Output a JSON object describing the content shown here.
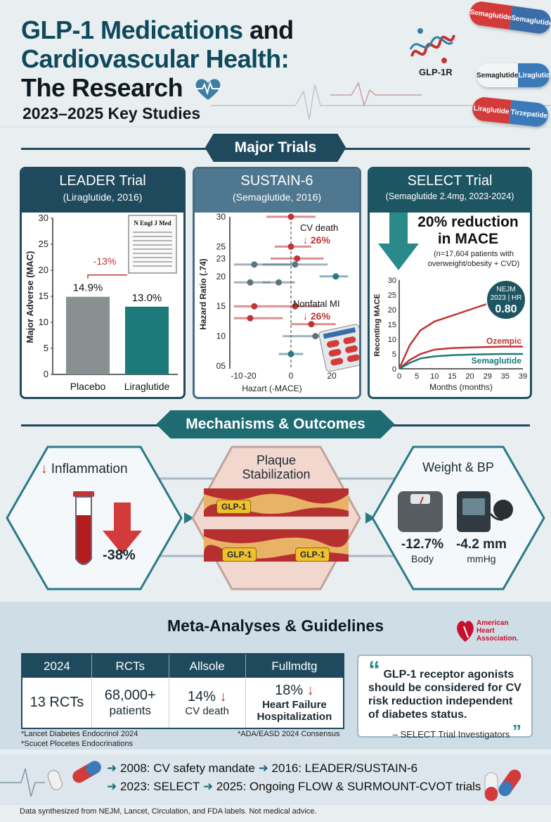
{
  "header": {
    "title_part1": "GLP-1 Medications",
    "title_part2": " and",
    "title_line2": "Cardiovascular Health:",
    "title_line3": "The Research",
    "subtitle": "2023–2025 Key Studies",
    "receptor_label": "GLP-1R",
    "pills": [
      {
        "left": "Semaglutide",
        "right": "Semaglutide"
      },
      {
        "left": "Semaglutide",
        "right": "Liraglutide"
      },
      {
        "left": "Liraglutide",
        "right": "Tirzepatide"
      }
    ]
  },
  "sections": {
    "major_trials": "Major Trials",
    "mechanisms": "Mechanisms & Outcomes",
    "meta": "Meta-Analyses & Guidelines"
  },
  "leader": {
    "title": "LEADER Trial",
    "subtitle": "(Liraglutide, 2016)",
    "ylabel": "Major Adverse (MAC)",
    "reduction": "-13%",
    "journal": "N Engl J Med",
    "chart_data": {
      "type": "bar",
      "categories": [
        "Placebo",
        "Liraglutide"
      ],
      "values": [
        14.9,
        13.0
      ],
      "value_labels": [
        "14.9%",
        "13.0%"
      ],
      "ylim": [
        0,
        30
      ],
      "yticks": [
        "0",
        "5",
        "10",
        "15",
        "20",
        "25",
        "30"
      ],
      "colors": [
        "#8a8f92",
        "#1d7a7a"
      ],
      "ylabel": "Major Adverse (MAC)"
    }
  },
  "sustain": {
    "title": "SUSTAIN-6",
    "subtitle": "(Semaglutide, 2016)",
    "ylabel": "Hazard Ratio (.74)",
    "xlabel": "Hazart (-MACE)",
    "cv_label": "CV death",
    "cv_value": "26%",
    "mi_label": "Nonfatal MI",
    "mi_value": "26%",
    "chart_data": {
      "type": "scatter",
      "yticks": [
        "05",
        "10",
        "15",
        "20",
        "23",
        "25",
        "30"
      ],
      "xticks": [
        "-10",
        "-20",
        "0",
        "20"
      ],
      "ylim": [
        5,
        30
      ],
      "xlim": [
        -30,
        30
      ],
      "points": [
        {
          "x": 0,
          "y": 30,
          "lo": -12,
          "hi": 12,
          "color": "#c03434"
        },
        {
          "x": 0,
          "y": 25,
          "lo": -8,
          "hi": 10,
          "color": "#c03434"
        },
        {
          "x": 3,
          "y": 23,
          "lo": -10,
          "hi": 16,
          "color": "#c03434"
        },
        {
          "x": -18,
          "y": 22,
          "lo": -28,
          "hi": 0,
          "color": "#5a7480"
        },
        {
          "x": 2,
          "y": 22,
          "lo": -14,
          "hi": 18,
          "color": "#5a7480"
        },
        {
          "x": 22,
          "y": 20,
          "lo": 14,
          "hi": 28,
          "color": "#2a7a86"
        },
        {
          "x": -20,
          "y": 19,
          "lo": -28,
          "hi": -10,
          "color": "#5a7480"
        },
        {
          "x": -6,
          "y": 19,
          "lo": -14,
          "hi": 2,
          "color": "#5a7480"
        },
        {
          "x": -18,
          "y": 15,
          "lo": -28,
          "hi": -8,
          "color": "#c03434"
        },
        {
          "x": 2,
          "y": 15,
          "lo": -8,
          "hi": 14,
          "color": "#c03434"
        },
        {
          "x": -20,
          "y": 13,
          "lo": -28,
          "hi": -4,
          "color": "#c03434"
        },
        {
          "x": 10,
          "y": 12,
          "lo": 0,
          "hi": 22,
          "color": "#c03434"
        },
        {
          "x": 12,
          "y": 10,
          "lo": -4,
          "hi": 22,
          "color": "#5a7480"
        },
        {
          "x": 0,
          "y": 7,
          "lo": -6,
          "hi": 6,
          "color": "#2a7a86"
        }
      ]
    }
  },
  "select": {
    "title": "SELECT Trial",
    "subtitle": "(Semaglutide 2.4mg, 2023-2024)",
    "headline1": "20% reduction",
    "headline2": "in MACE",
    "note1": "(n=17,604 patients with",
    "note2": "overweight/obesity + CVD)",
    "badge_line1": "NEJM",
    "badge_line2": "2023 | HR",
    "badge_value": "0.80",
    "ylabel": "Reconting MACE",
    "xlabel": "Months (months)",
    "legend_top": "Ozempic",
    "legend_bottom": "Semaglutide",
    "chart_data": {
      "type": "line",
      "xticks": [
        "0",
        "5",
        "10",
        "15",
        "20",
        "29",
        "35",
        "39"
      ],
      "yticks": [
        "0",
        "5",
        "10",
        "15",
        "20",
        "25",
        "30"
      ],
      "xlim": [
        0,
        39
      ],
      "ylim": [
        0,
        30
      ],
      "series": [
        {
          "name": "",
          "color": "#c03434",
          "x": [
            0,
            3,
            6,
            10,
            15,
            20,
            25,
            29
          ],
          "y": [
            0,
            8,
            13,
            16,
            18,
            20,
            22,
            23
          ]
        },
        {
          "name": "Ozempic",
          "color": "#c03434",
          "x": [
            0,
            3,
            6,
            10,
            15,
            20,
            29,
            39
          ],
          "y": [
            0,
            3,
            5,
            6.5,
            7,
            7.2,
            7.5,
            7.5
          ]
        },
        {
          "name": "Semaglutide",
          "color": "#1d7a7a",
          "x": [
            0,
            3,
            6,
            10,
            15,
            20,
            29,
            39
          ],
          "y": [
            0,
            2,
            3.5,
            4.2,
            4.6,
            4.8,
            5,
            5
          ]
        }
      ]
    }
  },
  "mechanisms": {
    "inflammation_label": "Inflammation",
    "inflammation_value": "-38%",
    "plaque_line1": "Plaque",
    "plaque_line2": "Stabilization",
    "glp_tag": "GLP-1",
    "weight_title": "Weight & BP",
    "weight_value": "-12.7%",
    "weight_unit": "Body",
    "bp_value": "-4.2 mm",
    "bp_unit": "mmHg"
  },
  "meta": {
    "headers": [
      "2024",
      "RCTs",
      "Allsole",
      "Fullmdtg"
    ],
    "c1": "13 RCTs",
    "c2_big": "68,000+",
    "c2_small": "patients",
    "c3_big": "14%",
    "c3_small": "CV death",
    "c4_big": "18%",
    "c4_small1": "Heart Failure",
    "c4_small2": "Hospitalization",
    "note_left1": "*Lancet Diabetes Endocrinol 2024",
    "note_left2": "*Scucet Plocetes Endocrinations",
    "note_right": "*ADA/EASD 2024 Consensus",
    "aha_line1": "American",
    "aha_line2": "Heart",
    "aha_line3": "Association.",
    "quote": "GLP-1 receptor agonists should be considered for CV risk reduction independent of diabetes status.",
    "quote_attr": "– SELECT Trial Investigators"
  },
  "timeline": {
    "line1a": "2008: CV safety mandate",
    "line1b": "2016: LEADER/SUSTAIN-6",
    "line2a": "2023: SELECT",
    "line2b": "2025: Ongoing FLOW & SURMOUNT-CVOT trials"
  },
  "disclaimer": "Data synthesized from NEJM, Lancet, Circulation, and FDA labels. Not medical advice."
}
